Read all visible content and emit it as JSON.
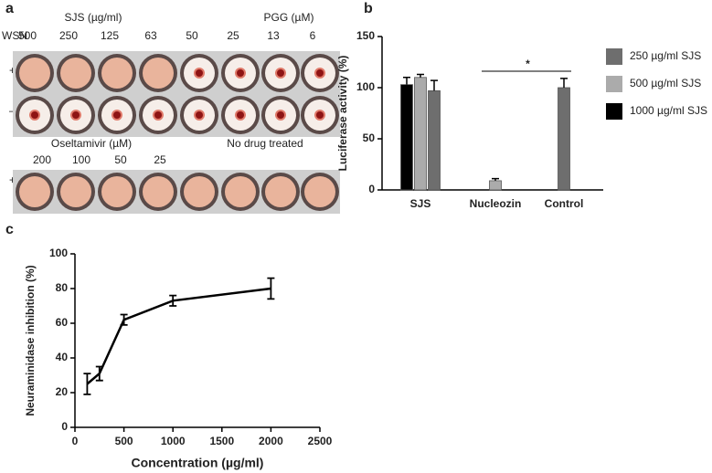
{
  "panel_labels": [
    "a",
    "b",
    "c"
  ],
  "panel_a": {
    "row_header": "WSN",
    "row_signs": [
      "+",
      "–",
      "+"
    ],
    "groups": [
      {
        "title": "SJS  (µg/ml)",
        "labels": [
          "500",
          "250",
          "125",
          "63"
        ]
      },
      {
        "title": "PGG (µM)",
        "labels": [
          "50",
          "25",
          "13",
          "6"
        ]
      },
      {
        "title": "Oseltamivir (µM)",
        "labels": [
          "200",
          "100",
          "50",
          "25"
        ]
      },
      {
        "title": "No drug treated"
      }
    ]
  },
  "chart_data": [
    {
      "type": "bar",
      "ylabel": "Luciferase activity (%)",
      "categories": [
        "SJS",
        "Nucleozin",
        "Control"
      ],
      "series": [
        {
          "name": "250 µg/ml SJS",
          "color": "#6e6e6e",
          "values": [
            97,
            null,
            100
          ],
          "errors": [
            10,
            null,
            9
          ]
        },
        {
          "name": "500 µg/ml SJS",
          "color": "#ababab",
          "values": [
            110,
            9,
            null
          ],
          "errors": [
            3,
            2,
            null
          ]
        },
        {
          "name": "1000 µg/ml SJS",
          "color": "#000000",
          "values": [
            103,
            null,
            null
          ],
          "errors": [
            7,
            null,
            null
          ]
        }
      ],
      "ylim": [
        0,
        150
      ],
      "yticks": [
        0,
        50,
        100,
        150
      ],
      "legend": "right",
      "annotation": "*"
    },
    {
      "type": "line",
      "xlabel": "Concentration (µg/ml)",
      "ylabel": "Neuraminidase inhibition (%)",
      "x": [
        125,
        250,
        500,
        1000,
        2000
      ],
      "series": [
        {
          "color": "#000000",
          "values": [
            25,
            31,
            62,
            73,
            80
          ],
          "errors": [
            6,
            4,
            3,
            3,
            6
          ]
        }
      ],
      "xlim": [
        0,
        2500
      ],
      "xticks": [
        0,
        500,
        1000,
        1500,
        2000,
        2500
      ],
      "ylim": [
        0,
        100
      ],
      "yticks": [
        0,
        20,
        40,
        60,
        80,
        100
      ]
    }
  ]
}
